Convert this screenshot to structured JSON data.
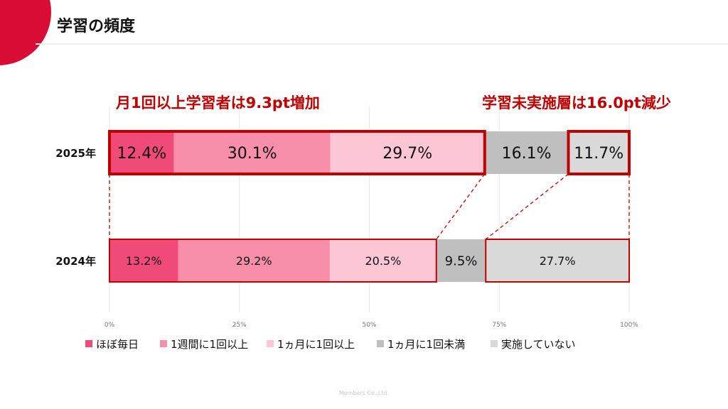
{
  "header": {
    "title": "学習の頻度"
  },
  "footer": {
    "copyright": "Members Co.,Ltd."
  },
  "colors": {
    "accent": "#c00000",
    "brand": "#d90c35",
    "series": [
      "#f04a78",
      "#f78fab",
      "#fcc6d4",
      "#bfbfbf",
      "#d9d9d9"
    ]
  },
  "chart_data": {
    "type": "bar",
    "orientation": "horizontal-stacked-100",
    "categories": [
      "2025年",
      "2024年"
    ],
    "series": [
      {
        "name": "ほぼ毎日",
        "values": [
          12.4,
          13.2
        ]
      },
      {
        "name": "1週間に1回以上",
        "values": [
          30.1,
          29.2
        ]
      },
      {
        "name": "1ヵ月に1回以上",
        "values": [
          29.7,
          20.5
        ]
      },
      {
        "name": "1ヵ月に1回未満",
        "values": [
          16.1,
          9.5
        ]
      },
      {
        "name": "実施していない",
        "values": [
          11.7,
          27.7
        ]
      }
    ],
    "xticks": [
      "0%",
      "25%",
      "50%",
      "75%",
      "100%"
    ],
    "xlim": [
      0,
      100
    ],
    "grid": true,
    "legend": "bottom",
    "annotations": [
      "月1回以上学習者は9.3pt増加",
      "学習未実施層は16.0pt減少"
    ]
  }
}
